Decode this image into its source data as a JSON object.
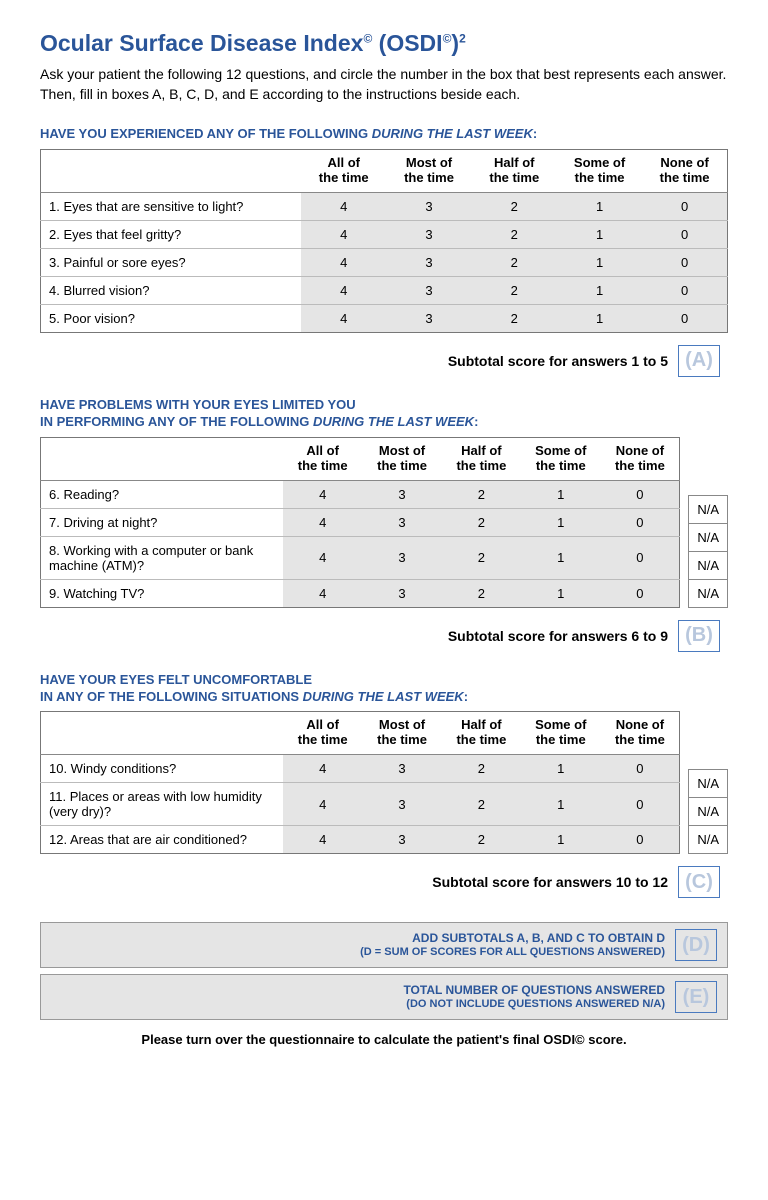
{
  "title": "Ocular Surface Disease Index",
  "title_copyright": "©",
  "title_abbrev": "(OSDI",
  "title_suffix": ")",
  "title_super": "2",
  "intro": "Ask your patient the following 12 questions, and circle the number in the box that best represents each answer. Then, fill in boxes A, B, C, D, and E according to the instructions beside each.",
  "columns": [
    "All of the time",
    "Most of the time",
    "Half of the time",
    "Some of the time",
    "None of the time"
  ],
  "values": [
    "4",
    "3",
    "2",
    "1",
    "0"
  ],
  "na_label": "N/A",
  "sections": [
    {
      "head_pre": "Have you experienced any of the following ",
      "head_italic": "during the last week",
      "head_post": ":",
      "has_na": false,
      "questions": [
        "1. Eyes that are sensitive to light?",
        "2. Eyes that feel gritty?",
        "3. Painful or sore eyes?",
        "4. Blurred vision?",
        "5. Poor vision?"
      ],
      "subtotal_text": "Subtotal score for answers 1 to 5",
      "subtotal_letter": "(A)"
    },
    {
      "head_pre": "Have problems with your eyes limited you\nin performing any of the following ",
      "head_italic": "during the last week",
      "head_post": ":",
      "has_na": true,
      "questions": [
        "6. Reading?",
        "7. Driving at night?",
        "8. Working with a computer or bank machine (ATM)?",
        "9. Watching TV?"
      ],
      "subtotal_text": "Subtotal score for answers 6 to 9",
      "subtotal_letter": "(B)"
    },
    {
      "head_pre": "Have your eyes felt uncomfortable\nin any of the following situations ",
      "head_italic": "during the last week",
      "head_post": ":",
      "has_na": true,
      "questions": [
        "10. Windy conditions?",
        "11. Places or areas with low humidity (very dry)?",
        "12. Areas that are air conditioned?"
      ],
      "subtotal_text": "Subtotal score for answers 10 to 12",
      "subtotal_letter": "(C)"
    }
  ],
  "sum_rows": [
    {
      "line1": "Add subtotals A, B, and C to obtain D",
      "line2": "(D = sum of scores for all questions answered)",
      "letter": "(D)"
    },
    {
      "line1": "Total number of questions answered",
      "line2": "(do not include questions answered N/A)",
      "letter": "(E)"
    }
  ],
  "footer": "Please turn over the questionnaire to calculate the patient's final OSDI© score.",
  "colors": {
    "heading": "#2a5599",
    "border": "#888888",
    "cell_bg": "#e5e5e5",
    "letter_border": "#4a7abf",
    "letter_color": "#b8c7dd"
  }
}
